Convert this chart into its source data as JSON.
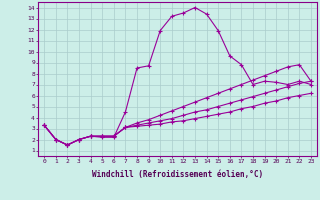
{
  "background_color": "#cceee8",
  "grid_color": "#aacccc",
  "line_color": "#990099",
  "line_width": 0.8,
  "marker": "+",
  "marker_size": 3.5,
  "marker_color": "#990099",
  "series": [
    [
      3.3,
      2.0,
      1.5,
      2.0,
      2.3,
      2.2,
      2.2,
      4.5,
      8.5,
      8.7,
      11.9,
      13.2,
      13.5,
      14.0,
      13.4,
      11.9,
      9.6,
      8.8,
      7.0,
      7.3,
      7.2,
      7.0,
      7.3,
      7.0
    ],
    [
      3.3,
      2.0,
      1.5,
      2.0,
      2.3,
      2.3,
      2.3,
      3.1,
      3.2,
      3.3,
      3.4,
      3.6,
      3.7,
      3.9,
      4.1,
      4.3,
      4.5,
      4.8,
      5.0,
      5.3,
      5.5,
      5.8,
      6.0,
      6.2
    ],
    [
      3.3,
      2.0,
      1.5,
      2.0,
      2.3,
      2.3,
      2.3,
      3.1,
      3.3,
      3.5,
      3.7,
      3.9,
      4.2,
      4.5,
      4.7,
      5.0,
      5.3,
      5.6,
      5.9,
      6.2,
      6.5,
      6.8,
      7.1,
      7.3
    ],
    [
      3.3,
      2.0,
      1.5,
      2.0,
      2.3,
      2.3,
      2.3,
      3.1,
      3.5,
      3.8,
      4.2,
      4.6,
      5.0,
      5.4,
      5.8,
      6.2,
      6.6,
      7.0,
      7.4,
      7.8,
      8.2,
      8.6,
      8.8,
      7.3
    ]
  ],
  "xlim": [
    -0.5,
    23.5
  ],
  "ylim": [
    0.5,
    14.5
  ],
  "xticks": [
    0,
    1,
    2,
    3,
    4,
    5,
    6,
    7,
    8,
    9,
    10,
    11,
    12,
    13,
    14,
    15,
    16,
    17,
    18,
    19,
    20,
    21,
    22,
    23
  ],
  "yticks": [
    1,
    2,
    3,
    4,
    5,
    6,
    7,
    8,
    9,
    10,
    11,
    12,
    13,
    14
  ],
  "xlabel": "Windchill (Refroidissement éolien,°C)",
  "tick_fontsize": 4.5,
  "label_fontsize": 5.5,
  "ylabel_fontsize": 5.5
}
